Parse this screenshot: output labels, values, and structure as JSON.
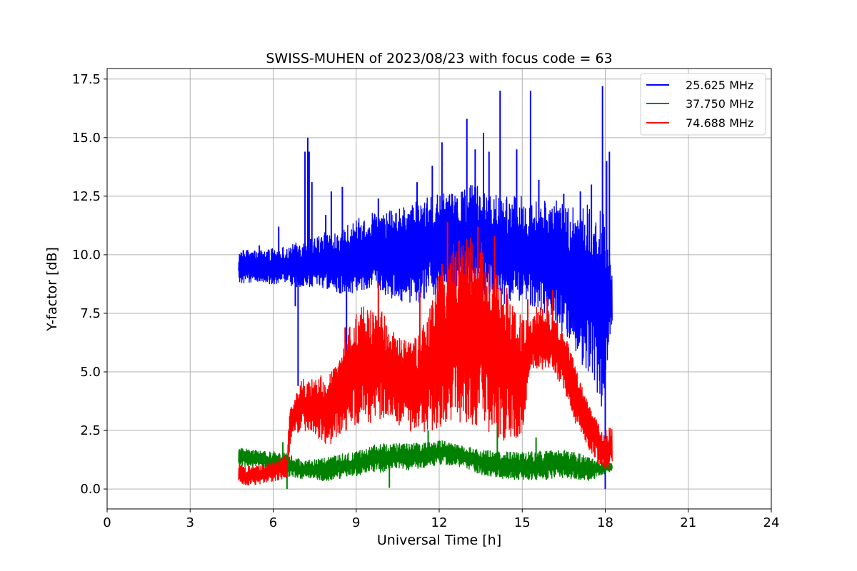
{
  "chart_data": {
    "type": "line",
    "title": "SWISS-MUHEN of 2023/08/23 with focus code = 63",
    "xlabel": "Universal Time [h]",
    "ylabel": "Y-factor [dB]",
    "xlim": [
      0,
      24
    ],
    "ylim": [
      -0.85,
      17.95
    ],
    "xticks": [
      0,
      3,
      6,
      9,
      12,
      15,
      18,
      21,
      24
    ],
    "xtick_labels": [
      "0",
      "3",
      "6",
      "9",
      "12",
      "15",
      "18",
      "21",
      "24"
    ],
    "yticks": [
      0.0,
      2.5,
      5.0,
      7.5,
      10.0,
      12.5,
      15.0,
      17.5
    ],
    "ytick_labels": [
      "0.0",
      "2.5",
      "5.0",
      "7.5",
      "10.0",
      "12.5",
      "15.0",
      "17.5"
    ],
    "grid": true,
    "legend_position": "top-right",
    "series": [
      {
        "name": "25.625 MHz",
        "color": "#0000ff",
        "x": [
          4.75,
          5.5,
          6.5,
          7.0,
          7.5,
          8.0,
          8.5,
          9.0,
          9.5,
          10.0,
          10.5,
          11.0,
          11.5,
          12.0,
          12.5,
          13.0,
          13.5,
          14.0,
          14.5,
          15.0,
          15.5,
          16.0,
          16.5,
          17.0,
          17.5,
          17.9,
          18.25
        ],
        "lower": [
          8.8,
          8.8,
          8.7,
          8.6,
          8.6,
          8.5,
          8.3,
          8.4,
          8.6,
          8.3,
          8.0,
          7.8,
          8.0,
          8.2,
          8.3,
          8.2,
          8.4,
          8.0,
          7.8,
          8.0,
          7.7,
          7.4,
          6.5,
          5.5,
          4.8,
          3.0,
          7.0
        ],
        "upper": [
          10.2,
          10.2,
          10.4,
          10.6,
          10.8,
          11.0,
          11.2,
          11.5,
          11.8,
          11.8,
          12.0,
          12.2,
          12.4,
          12.6,
          12.6,
          13.0,
          13.0,
          12.7,
          12.5,
          12.5,
          12.4,
          12.3,
          12.3,
          12.2,
          12.2,
          12.0,
          9.0
        ],
        "spikes": [
          [
            5.05,
            10.2
          ],
          [
            5.5,
            10.4
          ],
          [
            6.2,
            11.2
          ],
          [
            6.8,
            7.8
          ],
          [
            6.9,
            4.4
          ],
          [
            7.15,
            14.4
          ],
          [
            7.25,
            15.0
          ],
          [
            7.3,
            14.4
          ],
          [
            7.4,
            13.1
          ],
          [
            7.9,
            11.7
          ],
          [
            8.1,
            12.7
          ],
          [
            8.5,
            12.9
          ],
          [
            8.65,
            5.7
          ],
          [
            9.8,
            12.4
          ],
          [
            11.2,
            13.1
          ],
          [
            11.75,
            13.8
          ],
          [
            12.1,
            14.8
          ],
          [
            12.4,
            11.5
          ],
          [
            12.65,
            12.4
          ],
          [
            13.0,
            15.8
          ],
          [
            13.3,
            14.5
          ],
          [
            13.6,
            15.2
          ],
          [
            13.8,
            14.4
          ],
          [
            14.2,
            17.0
          ],
          [
            14.8,
            14.5
          ],
          [
            15.3,
            17.0
          ],
          [
            15.6,
            13.2
          ],
          [
            16.5,
            12.6
          ],
          [
            17.1,
            12.7
          ],
          [
            17.5,
            13.0
          ],
          [
            17.9,
            17.2
          ],
          [
            18.0,
            0.0
          ],
          [
            18.05,
            14.0
          ],
          [
            18.15,
            14.4
          ],
          [
            18.2,
            8.0
          ]
        ]
      },
      {
        "name": "37.750 MHz",
        "color": "#008000",
        "x": [
          4.75,
          5.5,
          6.5,
          7.0,
          7.5,
          8.0,
          8.5,
          9.0,
          9.5,
          10.0,
          10.5,
          11.0,
          11.5,
          12.0,
          12.5,
          13.0,
          13.5,
          14.0,
          14.5,
          15.0,
          15.5,
          16.0,
          16.5,
          17.0,
          17.5,
          17.9,
          18.25
        ],
        "lower": [
          0.95,
          0.95,
          0.55,
          0.4,
          0.35,
          0.35,
          0.45,
          0.55,
          0.75,
          0.7,
          0.85,
          0.8,
          0.9,
          1.05,
          1.0,
          0.85,
          0.6,
          0.5,
          0.4,
          0.4,
          0.35,
          0.4,
          0.45,
          0.4,
          0.35,
          0.6,
          0.75
        ],
        "upper": [
          1.75,
          1.65,
          1.55,
          1.25,
          1.25,
          1.35,
          1.5,
          1.6,
          1.85,
          1.95,
          1.95,
          1.95,
          2.0,
          2.1,
          2.0,
          1.8,
          1.7,
          1.6,
          1.6,
          1.6,
          1.6,
          1.65,
          1.65,
          1.55,
          1.3,
          1.15,
          1.1
        ],
        "spikes": [
          [
            6.35,
            2.0
          ],
          [
            6.5,
            0.0
          ],
          [
            10.2,
            0.05
          ],
          [
            11.6,
            2.5
          ],
          [
            14.1,
            2.8
          ],
          [
            15.5,
            2.2
          ]
        ]
      },
      {
        "name": "74.688 MHz",
        "color": "#ff0000",
        "x": [
          4.75,
          5.0,
          5.5,
          6.0,
          6.5,
          6.6,
          7.0,
          7.5,
          8.0,
          8.5,
          9.0,
          9.5,
          10.0,
          10.5,
          11.0,
          11.5,
          12.0,
          12.5,
          13.0,
          13.5,
          14.0,
          14.5,
          15.0,
          15.3,
          15.5,
          16.0,
          16.5,
          17.0,
          17.5,
          17.9,
          18.25
        ],
        "lower": [
          0.3,
          0.1,
          0.2,
          0.3,
          0.5,
          1.8,
          2.5,
          2.3,
          1.8,
          2.4,
          2.6,
          2.8,
          3.0,
          2.7,
          2.4,
          2.3,
          2.6,
          2.9,
          2.8,
          2.5,
          2.2,
          2.0,
          2.3,
          4.8,
          5.0,
          5.2,
          4.3,
          2.5,
          1.5,
          0.9,
          0.8
        ],
        "upper": [
          1.1,
          1.0,
          1.0,
          1.2,
          1.5,
          3.4,
          4.7,
          4.8,
          4.9,
          6.0,
          7.7,
          8.0,
          7.5,
          6.5,
          6.3,
          7.2,
          9.3,
          10.5,
          10.8,
          10.8,
          9.6,
          8.6,
          7.3,
          7.4,
          7.8,
          7.6,
          6.7,
          5.2,
          3.3,
          2.6,
          2.6
        ],
        "spikes": [
          [
            8.6,
            6.9
          ],
          [
            9.8,
            8.8
          ],
          [
            11.3,
            8.4
          ],
          [
            12.1,
            9.6
          ],
          [
            12.3,
            11.4
          ],
          [
            13.4,
            11.2
          ],
          [
            14.0,
            10.8
          ],
          [
            15.2,
            8.1
          ],
          [
            15.9,
            8.2
          ],
          [
            16.1,
            8.5
          ],
          [
            17.1,
            4.5
          ],
          [
            17.8,
            2.3
          ]
        ]
      }
    ]
  }
}
